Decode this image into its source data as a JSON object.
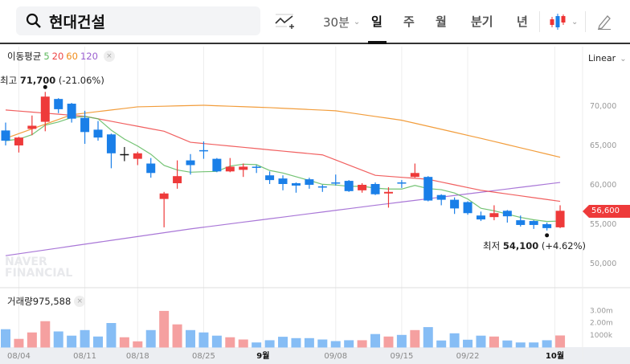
{
  "header": {
    "stock_name": "현대건설",
    "interval_select": "30분",
    "tabs": [
      {
        "label": "일",
        "active": true
      },
      {
        "label": "주"
      },
      {
        "label": "월"
      },
      {
        "label": "분기"
      },
      {
        "label": "년"
      }
    ],
    "icons": [
      "search-icon",
      "add-indicator-icon",
      "candlestick-type-icon",
      "pencil-icon"
    ]
  },
  "legend": {
    "title": "이동평균",
    "ma": [
      {
        "label": "5",
        "color": "#5cb85c"
      },
      {
        "label": "20",
        "color": "#ee4444"
      },
      {
        "label": "60",
        "color": "#f08c1a"
      },
      {
        "label": "120",
        "color": "#9a5fd0"
      }
    ],
    "close": "×"
  },
  "scale_mode": "Linear",
  "high": {
    "prefix": "최고",
    "value": "71,700",
    "change": "(-21.06%)"
  },
  "low": {
    "prefix": "최저",
    "value": "54,100",
    "change": "(+4.62%)"
  },
  "current_price": "56,600",
  "volume_legend": {
    "title": "거래량",
    "value": "975,588",
    "close": "×"
  },
  "watermark": "NAVER FINANCIAL",
  "colors": {
    "up": "#ee3a3a",
    "down": "#1a7fe8",
    "vol_up": "#f5a0a0",
    "vol_down": "#86bdf5"
  },
  "chart_data": {
    "type": "candlestick",
    "price_ticks": [
      "70,000",
      "65,000",
      "60,000",
      "55,000",
      "50,000"
    ],
    "price_tick_values": [
      70000,
      65000,
      60000,
      55000,
      50000
    ],
    "volume_ticks": [
      "3.00m",
      "2.00m",
      "1000k"
    ],
    "volume_tick_values": [
      3000000,
      2000000,
      1000000
    ],
    "x_labels": [
      {
        "label": "08/04",
        "i": 1
      },
      {
        "label": "08/11",
        "i": 6
      },
      {
        "label": "08/18",
        "i": 10
      },
      {
        "label": "08/25",
        "i": 15
      },
      {
        "label": "9월",
        "i": 19.5,
        "bold": true
      },
      {
        "label": "09/08",
        "i": 25
      },
      {
        "label": "09/15",
        "i": 30
      },
      {
        "label": "09/22",
        "i": 35
      },
      {
        "label": "10월",
        "i": 41.6,
        "bold": true
      }
    ],
    "ohlc": [
      [
        66800,
        67800,
        64900,
        65500
      ],
      [
        64900,
        66000,
        64000,
        65900
      ],
      [
        67000,
        68700,
        66200,
        67400
      ],
      [
        67900,
        71700,
        66700,
        71100
      ],
      [
        70800,
        70900,
        69000,
        69500
      ],
      [
        70200,
        70300,
        67800,
        68300
      ],
      [
        68400,
        69300,
        65100,
        66600
      ],
      [
        66900,
        68000,
        65500,
        65900
      ],
      [
        66300,
        66400,
        62000,
        63900
      ],
      [
        63800,
        64700,
        62900,
        63800
      ],
      [
        63200,
        64100,
        62400,
        63900
      ],
      [
        62600,
        63300,
        60800,
        61400
      ],
      [
        58100,
        59000,
        54500,
        58800
      ],
      [
        60100,
        63000,
        59400,
        61000
      ],
      [
        63000,
        63800,
        61200,
        62400
      ],
      [
        64300,
        65400,
        63200,
        64200
      ],
      [
        63200,
        63300,
        61500,
        61600
      ],
      [
        61600,
        63300,
        61500,
        62200
      ],
      [
        61800,
        62600,
        60900,
        62200
      ],
      [
        62200,
        62400,
        61400,
        62100
      ],
      [
        61100,
        61600,
        60000,
        60500
      ],
      [
        60700,
        61100,
        59200,
        60000
      ],
      [
        60100,
        60200,
        58900,
        59800
      ],
      [
        60600,
        60800,
        59400,
        59900
      ],
      [
        59700,
        59900,
        59000,
        59600
      ],
      [
        60200,
        61200,
        59800,
        60100
      ],
      [
        60400,
        60500,
        59000,
        59100
      ],
      [
        59200,
        60100,
        58900,
        59900
      ],
      [
        60000,
        60200,
        58600,
        58700
      ],
      [
        58800,
        59600,
        57000,
        59000
      ],
      [
        60200,
        60500,
        59500,
        60100
      ],
      [
        60900,
        62600,
        60800,
        61400
      ],
      [
        60900,
        61000,
        57800,
        57900
      ],
      [
        58600,
        58700,
        57300,
        58000
      ],
      [
        58000,
        58300,
        56200,
        56900
      ],
      [
        57700,
        57800,
        56100,
        56300
      ],
      [
        56000,
        56500,
        55300,
        55500
      ],
      [
        55800,
        57300,
        55400,
        56300
      ],
      [
        56600,
        56700,
        55100,
        55900
      ],
      [
        55400,
        56000,
        54600,
        54800
      ],
      [
        55300,
        55400,
        54300,
        54800
      ],
      [
        54900,
        55100,
        54100,
        54400
      ],
      [
        54500,
        57300,
        54400,
        56600
      ]
    ],
    "volume": [
      1480000,
      700000,
      1220000,
      2130000,
      1300000,
      960000,
      1410000,
      890000,
      1980000,
      830000,
      500000,
      1410000,
      2960000,
      1870000,
      1410000,
      1220000,
      960000,
      830000,
      650000,
      410000,
      590000,
      870000,
      760000,
      760000,
      650000,
      520000,
      590000,
      590000,
      1090000,
      890000,
      1020000,
      1410000,
      1650000,
      570000,
      1150000,
      630000,
      960000,
      890000,
      570000,
      410000,
      410000,
      590000,
      975588
    ],
    "ma20_anchors": [
      [
        0,
        69400
      ],
      [
        6,
        68600
      ],
      [
        12,
        66700
      ],
      [
        14,
        65300
      ],
      [
        24,
        63700
      ],
      [
        28,
        61100
      ],
      [
        32,
        60600
      ],
      [
        36,
        59200
      ],
      [
        42,
        57800
      ]
    ],
    "ma60_anchors": [
      [
        0,
        65800
      ],
      [
        5,
        68800
      ],
      [
        10,
        69800
      ],
      [
        15,
        70000
      ],
      [
        20,
        69700
      ],
      [
        25,
        69300
      ],
      [
        30,
        68100
      ],
      [
        36,
        65800
      ],
      [
        42,
        63400
      ]
    ],
    "ma120_anchors": [
      [
        0,
        50900
      ],
      [
        14,
        54300
      ],
      [
        28,
        57300
      ],
      [
        42,
        60200
      ]
    ]
  }
}
